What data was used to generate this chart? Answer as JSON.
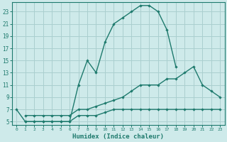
{
  "xlabel": "Humidex (Indice chaleur)",
  "background_color": "#ceeaea",
  "grid_color": "#aacfcf",
  "line_color": "#1e7a6d",
  "xlim": [
    -0.5,
    23.5
  ],
  "ylim": [
    4.5,
    24.5
  ],
  "xticks": [
    0,
    1,
    2,
    3,
    4,
    5,
    6,
    7,
    8,
    9,
    10,
    11,
    12,
    13,
    14,
    15,
    16,
    17,
    18,
    19,
    20,
    21,
    22,
    23
  ],
  "yticks": [
    5,
    7,
    9,
    11,
    13,
    15,
    17,
    19,
    21,
    23
  ],
  "series": [
    {
      "x": [
        0,
        1,
        2,
        3,
        4,
        5,
        6,
        7,
        8,
        9,
        10,
        11,
        12,
        13,
        14,
        15,
        16,
        17,
        18
      ],
      "y": [
        7,
        5,
        5,
        5,
        5,
        5,
        5,
        11,
        15,
        13,
        18,
        21,
        22,
        23,
        24,
        24,
        23,
        20,
        14
      ]
    },
    {
      "x": [
        1,
        2,
        3,
        4,
        5,
        6,
        7,
        8,
        9,
        10,
        11,
        12,
        13,
        14,
        15,
        16,
        17,
        18,
        19,
        20,
        21,
        22,
        23
      ],
      "y": [
        6,
        6,
        6,
        6,
        6,
        6,
        7,
        7,
        7.5,
        8,
        8.5,
        9,
        10,
        11,
        11,
        11,
        12,
        12,
        13,
        14,
        11,
        10,
        9
      ]
    },
    {
      "x": [
        1,
        2,
        3,
        4,
        5,
        6,
        7,
        8,
        9,
        10,
        11,
        12,
        13,
        14,
        15,
        16,
        17,
        18,
        19,
        20,
        21,
        22,
        23
      ],
      "y": [
        5,
        5,
        5,
        5,
        5,
        5,
        6,
        6,
        6,
        6.5,
        7,
        7,
        7,
        7,
        7,
        7,
        7,
        7,
        7,
        7,
        7,
        7,
        7
      ]
    }
  ]
}
